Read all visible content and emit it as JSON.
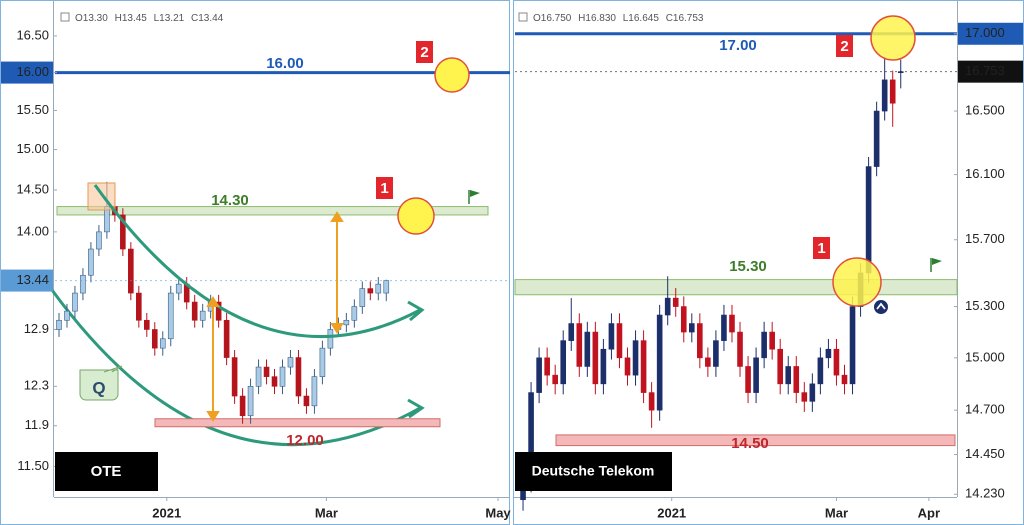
{
  "chart_data": [
    {
      "type": "candlestick",
      "title": "OTE",
      "ohlc": [
        "O13.30",
        "H13.45",
        "L13.21",
        "C13.44"
      ],
      "x": [
        -27,
        -25,
        -23,
        -21,
        -19,
        -17,
        -15,
        -13,
        -11,
        -9,
        -7,
        -5,
        -3,
        -1,
        1,
        3,
        5,
        7,
        9,
        11,
        13,
        15,
        17,
        19,
        21,
        23,
        25,
        27,
        29,
        31,
        33,
        35,
        37,
        39,
        41,
        43,
        45,
        47,
        49,
        51,
        53,
        55
      ],
      "open": [
        12.9,
        13.0,
        13.1,
        13.3,
        13.5,
        13.8,
        14.0,
        14.3,
        14.2,
        13.8,
        13.3,
        13.0,
        12.9,
        12.7,
        12.8,
        13.3,
        13.4,
        13.2,
        13.0,
        13.1,
        13.2,
        13.0,
        12.6,
        12.2,
        12.0,
        12.3,
        12.5,
        12.4,
        12.3,
        12.5,
        12.6,
        12.2,
        12.1,
        12.4,
        12.7,
        12.9,
        12.95,
        13.0,
        13.15,
        13.35,
        13.3,
        13.3
      ],
      "high": [
        13.08,
        13.18,
        13.38,
        13.58,
        13.88,
        14.08,
        14.6,
        14.38,
        14.28,
        13.88,
        13.38,
        13.08,
        12.98,
        12.88,
        13.38,
        13.48,
        13.48,
        13.28,
        13.18,
        13.28,
        13.28,
        13.08,
        12.68,
        12.28,
        12.38,
        12.58,
        12.58,
        12.48,
        12.58,
        12.68,
        12.68,
        12.28,
        12.48,
        12.78,
        12.98,
        13.03,
        13.08,
        13.23,
        13.43,
        13.43,
        13.48,
        13.45
      ],
      "low": [
        12.82,
        12.92,
        13.02,
        13.22,
        13.42,
        13.72,
        13.92,
        14.12,
        13.72,
        13.22,
        12.92,
        12.82,
        12.62,
        12.62,
        12.72,
        13.22,
        13.12,
        12.92,
        12.92,
        13.02,
        12.92,
        12.52,
        12.12,
        11.92,
        11.92,
        12.22,
        12.32,
        12.22,
        12.22,
        12.42,
        12.12,
        12.02,
        12.02,
        12.32,
        12.62,
        12.82,
        12.87,
        12.92,
        13.07,
        13.22,
        13.22,
        13.21
      ],
      "close": [
        13.0,
        13.1,
        13.3,
        13.5,
        13.8,
        14.0,
        14.3,
        14.2,
        13.8,
        13.3,
        13.0,
        12.9,
        12.7,
        12.8,
        13.3,
        13.4,
        13.2,
        13.0,
        13.1,
        13.2,
        13.0,
        12.6,
        12.2,
        12.0,
        12.3,
        12.5,
        12.4,
        12.3,
        12.5,
        12.6,
        12.2,
        12.1,
        12.4,
        12.7,
        12.9,
        12.95,
        13.0,
        13.15,
        13.35,
        13.3,
        13.4,
        13.44
      ],
      "up_color": "#a9cbe8",
      "down_color": "#b5141c",
      "xlim": [
        -28,
        86
      ],
      "xticks": [
        {
          "value": 0,
          "label": "2021"
        },
        {
          "value": 40,
          "label": "Mar"
        },
        {
          "value": 83,
          "label": "May"
        }
      ],
      "ylim": [
        11.21,
        16.89
      ],
      "log_scale": true,
      "yticks": [
        {
          "value": 16.5,
          "label": "16.50"
        },
        {
          "value": 16,
          "label": "16.00"
        },
        {
          "value": 15.5,
          "label": "15.50"
        },
        {
          "value": 15,
          "label": "15.00"
        },
        {
          "value": 14.5,
          "label": "14.50"
        },
        {
          "value": 14,
          "label": "14.00"
        },
        12.9,
        12.3,
        11.9,
        {
          "value": 11.5,
          "label": "11.50"
        }
      ],
      "last": 13.44,
      "last_color": "#5b9bd5",
      "levels": [
        {
          "value": 16,
          "label": "16.00",
          "color": "#1f5bb5"
        }
      ],
      "bands": [
        {
          "low": 14.2,
          "high": 14.3,
          "label": "14.30",
          "color": "#dcebd0"
        },
        {
          "low": 11.89,
          "high": 11.97,
          "label": "12.00",
          "color": "#f5b8b8"
        }
      ],
      "annotations": [
        "1",
        "2",
        "Q"
      ]
    },
    {
      "type": "candlestick",
      "title": "Deutsche Telekom",
      "ohlc": [
        "O16.750",
        "H16.830",
        "L16.645",
        "C16.753"
      ],
      "x": [
        -37,
        -35,
        -33,
        -31,
        -29,
        -27,
        -25,
        -23,
        -21,
        -19,
        -17,
        -15,
        -13,
        -11,
        -9,
        -7,
        -5,
        -3,
        -1,
        1,
        3,
        5,
        7,
        9,
        11,
        13,
        15,
        17,
        19,
        21,
        23,
        25,
        27,
        29,
        31,
        33,
        35,
        37,
        39,
        41,
        43,
        45,
        47,
        49,
        51,
        53,
        55,
        57
      ],
      "open": [
        14.2,
        14.3,
        14.8,
        15.0,
        14.9,
        14.85,
        15.1,
        15.2,
        14.95,
        15.15,
        14.85,
        15.05,
        15.2,
        15.0,
        14.9,
        15.1,
        14.8,
        14.7,
        15.25,
        15.35,
        15.3,
        15.15,
        15.2,
        15.0,
        14.95,
        15.1,
        15.25,
        15.15,
        14.95,
        14.8,
        15.0,
        15.15,
        15.05,
        14.85,
        14.95,
        14.8,
        14.75,
        14.85,
        15.0,
        15.05,
        14.9,
        14.85,
        15.3,
        15.5,
        16.15,
        16.5,
        16.7,
        16.75
      ],
      "high": [
        14.36,
        14.86,
        15.06,
        15.06,
        14.96,
        15.16,
        15.35,
        15.26,
        15.21,
        15.21,
        15.11,
        15.26,
        15.26,
        15.06,
        15.16,
        15.16,
        14.86,
        15.31,
        15.48,
        15.41,
        15.36,
        15.26,
        15.26,
        15.06,
        15.16,
        15.31,
        15.31,
        15.21,
        15.01,
        15.06,
        15.21,
        15.21,
        15.11,
        15.01,
        15.01,
        14.86,
        14.91,
        15.06,
        15.11,
        15.11,
        14.96,
        15.36,
        15.56,
        16.21,
        16.56,
        16.85,
        16.76,
        16.83
      ],
      "low": [
        14.14,
        14.24,
        14.74,
        14.84,
        14.79,
        14.79,
        15.04,
        14.89,
        14.89,
        14.79,
        14.79,
        14.99,
        14.94,
        14.84,
        14.84,
        14.74,
        14.6,
        14.64,
        15.19,
        15.24,
        15.09,
        15.09,
        14.94,
        14.89,
        14.89,
        15.04,
        15.09,
        14.89,
        14.74,
        14.74,
        14.94,
        14.99,
        14.79,
        14.79,
        14.74,
        14.69,
        14.69,
        14.79,
        14.94,
        14.84,
        14.79,
        14.79,
        15.24,
        15.44,
        16.09,
        16.44,
        16.4,
        16.645
      ],
      "close": [
        14.3,
        14.8,
        15.0,
        14.9,
        14.85,
        15.1,
        15.2,
        14.95,
        15.15,
        14.85,
        15.05,
        15.2,
        15.0,
        14.9,
        15.1,
        14.8,
        14.7,
        15.25,
        15.35,
        15.3,
        15.15,
        15.2,
        15.0,
        14.95,
        15.1,
        15.25,
        15.15,
        14.95,
        14.8,
        15.0,
        15.15,
        15.05,
        14.85,
        14.95,
        14.8,
        14.75,
        14.85,
        15.0,
        15.05,
        14.9,
        14.85,
        15.3,
        15.5,
        16.15,
        16.5,
        16.7,
        16.55,
        16.753
      ],
      "up_color": "#1c2f6b",
      "down_color": "#c1121f",
      "xlim": [
        -39,
        71
      ],
      "xticks": [
        {
          "value": 0,
          "label": "2021"
        },
        {
          "value": 41,
          "label": "Mar"
        },
        {
          "value": 64,
          "label": "Apr"
        }
      ],
      "ylim": [
        14.215,
        17.17
      ],
      "log_scale": true,
      "yticks": [
        {
          "value": 17,
          "label": "17.000"
        },
        {
          "value": 16.5,
          "label": "16.500"
        },
        {
          "value": 16.1,
          "label": "16.100"
        },
        {
          "value": 15.7,
          "label": "15.700"
        },
        {
          "value": 15.3,
          "label": "15.300"
        },
        {
          "value": 15,
          "label": "15.000"
        },
        {
          "value": 14.7,
          "label": "14.700"
        },
        {
          "value": 14.45,
          "label": "14.450"
        },
        {
          "value": 14.23,
          "label": "14.230"
        }
      ],
      "last": 16.753,
      "last_color": "#111111",
      "levels": [
        {
          "value": 17,
          "label": "17.00",
          "color": "#1f5bb5"
        }
      ],
      "bands": [
        {
          "low": 15.37,
          "high": 15.46,
          "label": "15.30",
          "color": "#dcebd0"
        },
        {
          "low": 14.5,
          "high": 14.56,
          "label": "14.50",
          "color": "#f5b8b8"
        }
      ],
      "annotations": [
        "1",
        "2"
      ]
    }
  ]
}
